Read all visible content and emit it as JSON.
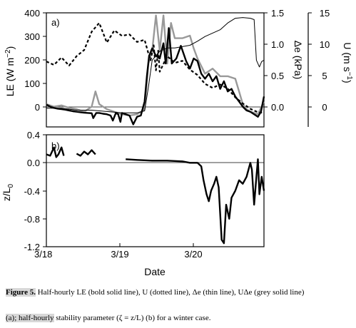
{
  "chart_data": [
    {
      "panel": "a)",
      "type": "line",
      "xlabel": "",
      "left_axis": {
        "label": "LE (W m−2)",
        "ylim": [
          -50,
          400
        ],
        "ticks": [
          "0",
          "100",
          "200",
          "300",
          "400"
        ],
        "tick_values": [
          0,
          100,
          200,
          300,
          400
        ]
      },
      "right_axis_1": {
        "label": "Δe (kPa)",
        "ylim": [
          -0.1875,
          1.5
        ],
        "ticks": [
          "0.0",
          "0.5",
          "1.0",
          "1.5"
        ],
        "tick_values": [
          0,
          0.5,
          1.0,
          1.5
        ]
      },
      "right_axis_2": {
        "label": "U (m s−1)",
        "ylim": [
          -1.875,
          15
        ],
        "ticks": [
          "0",
          "5",
          "10",
          "15"
        ],
        "tick_values": [
          0,
          5,
          10,
          15
        ]
      },
      "xlim": [
        0,
        2.88
      ],
      "zero_line": 0,
      "series": [
        {
          "style": "bold",
          "axis": "left",
          "points": [
            [
              0.0,
              38
            ],
            [
              0.05,
              30
            ],
            [
              0.1,
              25
            ],
            [
              0.15,
              22
            ],
            [
              0.2,
              20
            ],
            [
              0.25,
              18
            ],
            [
              0.3,
              15
            ],
            [
              0.35,
              12
            ],
            [
              0.4,
              10
            ],
            [
              0.45,
              8
            ],
            [
              0.5,
              6
            ],
            [
              0.55,
              5
            ],
            [
              0.6,
              4
            ],
            [
              0.62,
              -15
            ],
            [
              0.66,
              5
            ],
            [
              0.7,
              5
            ],
            [
              0.75,
              2
            ],
            [
              0.8,
              0
            ],
            [
              0.85,
              -5
            ],
            [
              0.88,
              -25
            ],
            [
              0.92,
              5
            ],
            [
              0.95,
              0
            ],
            [
              0.98,
              -30
            ],
            [
              1.0,
              5
            ],
            [
              1.05,
              0
            ],
            [
              1.1,
              -5
            ],
            [
              1.15,
              -40
            ],
            [
              1.2,
              -10
            ],
            [
              1.25,
              -5
            ],
            [
              1.3,
              50
            ],
            [
              1.33,
              150
            ],
            [
              1.36,
              230
            ],
            [
              1.4,
              260
            ],
            [
              1.45,
              230
            ],
            [
              1.5,
              220
            ],
            [
              1.55,
              280
            ],
            [
              1.58,
              200
            ],
            [
              1.62,
              340
            ],
            [
              1.66,
              200
            ],
            [
              1.72,
              220
            ],
            [
              1.78,
              270
            ],
            [
              1.85,
              210
            ],
            [
              1.9,
              180
            ],
            [
              1.95,
              220
            ],
            [
              2.0,
              210
            ],
            [
              2.05,
              160
            ],
            [
              2.1,
              140
            ],
            [
              2.15,
              160
            ],
            [
              2.2,
              130
            ],
            [
              2.25,
              150
            ],
            [
              2.3,
              100
            ],
            [
              2.35,
              130
            ],
            [
              2.4,
              90
            ],
            [
              2.45,
              100
            ],
            [
              2.5,
              70
            ],
            [
              2.55,
              50
            ],
            [
              2.6,
              30
            ],
            [
              2.65,
              15
            ],
            [
              2.7,
              10
            ],
            [
              2.75,
              0
            ],
            [
              2.8,
              -10
            ],
            [
              2.84,
              10
            ],
            [
              2.88,
              70
            ]
          ]
        },
        {
          "style": "dotted",
          "axis": "right_2",
          "points": [
            [
              0.0,
              7.8
            ],
            [
              0.1,
              7.3
            ],
            [
              0.2,
              8.4
            ],
            [
              0.3,
              7.2
            ],
            [
              0.4,
              8.6
            ],
            [
              0.5,
              9.5
            ],
            [
              0.6,
              12.2
            ],
            [
              0.7,
              13.5
            ],
            [
              0.8,
              10.6
            ],
            [
              0.9,
              12.4
            ],
            [
              1.0,
              11.6
            ],
            [
              1.1,
              11.8
            ],
            [
              1.2,
              10.7
            ],
            [
              1.3,
              11.0
            ],
            [
              1.35,
              9.0
            ],
            [
              1.38,
              8.0
            ],
            [
              1.42,
              10.2
            ],
            [
              1.45,
              6.5
            ],
            [
              1.48,
              9.4
            ],
            [
              1.5,
              6.3
            ],
            [
              1.6,
              8.6
            ],
            [
              1.7,
              7.6
            ],
            [
              1.8,
              7.9
            ],
            [
              1.9,
              6.6
            ],
            [
              2.0,
              5.8
            ],
            [
              2.1,
              4.5
            ],
            [
              2.2,
              3.9
            ],
            [
              2.3,
              4.4
            ],
            [
              2.4,
              3.8
            ],
            [
              2.5,
              2.5
            ],
            [
              2.6,
              1.6
            ],
            [
              2.7,
              0.8
            ],
            [
              2.8,
              0.3
            ],
            [
              2.88,
              0.2
            ]
          ]
        },
        {
          "style": "thin",
          "axis": "right_1",
          "points": [
            [
              0.0,
              0.09
            ],
            [
              0.2,
              0.09
            ],
            [
              0.4,
              0.06
            ],
            [
              0.6,
              0.06
            ],
            [
              0.8,
              0.04
            ],
            [
              1.0,
              0.02
            ],
            [
              1.2,
              0.02
            ],
            [
              1.3,
              0.05
            ],
            [
              1.35,
              0.4
            ],
            [
              1.4,
              0.8
            ],
            [
              1.5,
              0.93
            ],
            [
              1.6,
              0.98
            ],
            [
              1.7,
              0.98
            ],
            [
              1.8,
              1.0
            ],
            [
              1.9,
              1.02
            ],
            [
              2.0,
              1.08
            ],
            [
              2.1,
              1.15
            ],
            [
              2.2,
              1.2
            ],
            [
              2.3,
              1.25
            ],
            [
              2.4,
              1.35
            ],
            [
              2.5,
              1.42
            ],
            [
              2.6,
              1.43
            ],
            [
              2.7,
              1.42
            ],
            [
              2.75,
              1.4
            ],
            [
              2.78,
              0.8
            ],
            [
              2.82,
              0.7
            ],
            [
              2.85,
              0.78
            ],
            [
              2.88,
              0.8
            ]
          ]
        },
        {
          "style": "grey",
          "axis": "left",
          "points": [
            [
              0.0,
              40
            ],
            [
              0.1,
              30
            ],
            [
              0.2,
              35
            ],
            [
              0.3,
              25
            ],
            [
              0.4,
              20
            ],
            [
              0.5,
              10
            ],
            [
              0.6,
              30
            ],
            [
              0.65,
              90
            ],
            [
              0.7,
              40
            ],
            [
              0.8,
              20
            ],
            [
              0.9,
              10
            ],
            [
              1.0,
              0
            ],
            [
              1.1,
              -5
            ],
            [
              1.2,
              0
            ],
            [
              1.3,
              20
            ],
            [
              1.35,
              200
            ],
            [
              1.4,
              250
            ],
            [
              1.45,
              390
            ],
            [
              1.5,
              250
            ],
            [
              1.55,
              390
            ],
            [
              1.6,
              200
            ],
            [
              1.65,
              360
            ],
            [
              1.7,
              300
            ],
            [
              1.8,
              300
            ],
            [
              1.9,
              310
            ],
            [
              1.95,
              260
            ],
            [
              2.0,
              220
            ],
            [
              2.1,
              160
            ],
            [
              2.2,
              180
            ],
            [
              2.3,
              150
            ],
            [
              2.4,
              150
            ],
            [
              2.5,
              140
            ],
            [
              2.55,
              90
            ],
            [
              2.6,
              40
            ],
            [
              2.65,
              20
            ],
            [
              2.7,
              10
            ],
            [
              2.8,
              0
            ],
            [
              2.88,
              50
            ]
          ]
        }
      ]
    },
    {
      "panel": "b)",
      "type": "line",
      "xlabel": "Date",
      "ylabel": "z/L0",
      "ylim": [
        -1.2,
        0.4
      ],
      "xlim": [
        0,
        2.88
      ],
      "x_ticks": [
        "3/18",
        "3/19",
        "3/20"
      ],
      "x_tick_values": [
        0,
        1,
        2
      ],
      "y_ticks": [
        "0.4",
        "0.0",
        "-0.4",
        "-0.8",
        "-1.2"
      ],
      "y_tick_values": [
        0.4,
        0.0,
        -0.4,
        -0.8,
        -1.2
      ],
      "zero_line": 0,
      "series": [
        {
          "style": "bold",
          "segments": [
            [
              [
                0.0,
                0.12
              ],
              [
                0.05,
                0.1
              ],
              [
                0.1,
                0.22
              ],
              [
                0.13,
                0.08
              ],
              [
                0.16,
                0.12
              ],
              [
                0.2,
                0.22
              ],
              [
                0.23,
                0.1
              ]
            ],
            [
              [
                0.4,
                0.13
              ],
              [
                0.45,
                0.1
              ],
              [
                0.5,
                0.16
              ],
              [
                0.55,
                0.12
              ],
              [
                0.6,
                0.18
              ],
              [
                0.65,
                0.12
              ]
            ],
            [
              [
                1.05,
                0.05
              ],
              [
                1.2,
                0.04
              ],
              [
                1.4,
                0.03
              ],
              [
                1.6,
                0.03
              ],
              [
                1.8,
                0.02
              ],
              [
                1.9,
                0.0
              ],
              [
                2.0,
                0.0
              ],
              [
                2.05,
                -0.05
              ],
              [
                2.08,
                -0.25
              ],
              [
                2.12,
                -0.45
              ],
              [
                2.15,
                -0.55
              ],
              [
                2.18,
                -0.4
              ],
              [
                2.22,
                -0.3
              ],
              [
                2.25,
                -0.2
              ],
              [
                2.28,
                -0.35
              ],
              [
                2.32,
                -1.1
              ],
              [
                2.35,
                -1.15
              ],
              [
                2.38,
                -0.6
              ],
              [
                2.42,
                -0.8
              ],
              [
                2.45,
                -0.5
              ],
              [
                2.5,
                -0.4
              ],
              [
                2.55,
                -0.25
              ],
              [
                2.6,
                -0.3
              ],
              [
                2.65,
                -0.2
              ],
              [
                2.7,
                0.0
              ],
              [
                2.72,
                -0.1
              ],
              [
                2.75,
                -0.6
              ],
              [
                2.78,
                -0.2
              ],
              [
                2.8,
                0.05
              ],
              [
                2.82,
                -0.45
              ],
              [
                2.85,
                -0.2
              ],
              [
                2.88,
                -0.4
              ]
            ]
          ]
        }
      ]
    }
  ],
  "caption": {
    "label": "Figure 5.",
    "line1": " Half-hourly LE (bold solid line), U (dotted line), Δe (thin line), UΔe (grey solid line)",
    "line2_a": "(a); half-hourly",
    "line2_b": " stability parameter (ζ = z/L) (b) for a winter case."
  },
  "colors": {
    "grey_series": "#999999",
    "ink": "#000000",
    "highlight": "#d8d8d8"
  }
}
